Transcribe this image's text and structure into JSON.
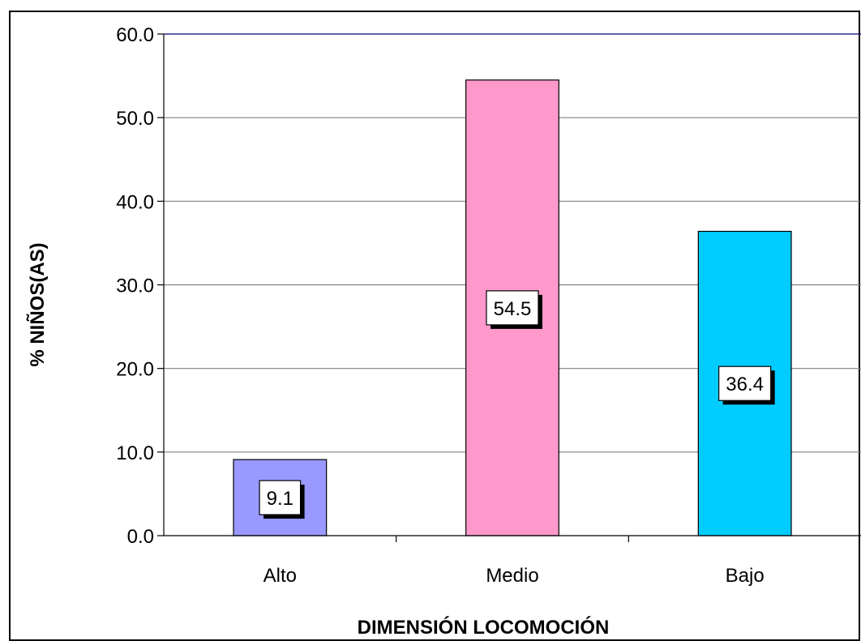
{
  "chart_data": {
    "type": "bar",
    "title": "",
    "xlabel": "DIMENSIÓN LOCOMOCIÓN",
    "ylabel": "% NIÑOS(AS)",
    "categories": [
      "Alto",
      "Medio",
      "Bajo"
    ],
    "values": [
      9.1,
      54.5,
      36.4
    ],
    "data_labels": [
      "9.1",
      "54.5",
      "36.4"
    ],
    "colors": [
      "#9999ff",
      "#ff99cc",
      "#00ccff"
    ],
    "ylim": [
      0,
      60
    ],
    "yticks": [
      "0.0",
      "10.0",
      "20.0",
      "30.0",
      "40.0",
      "50.0",
      "60.0"
    ],
    "grid": true,
    "legend": "none"
  }
}
